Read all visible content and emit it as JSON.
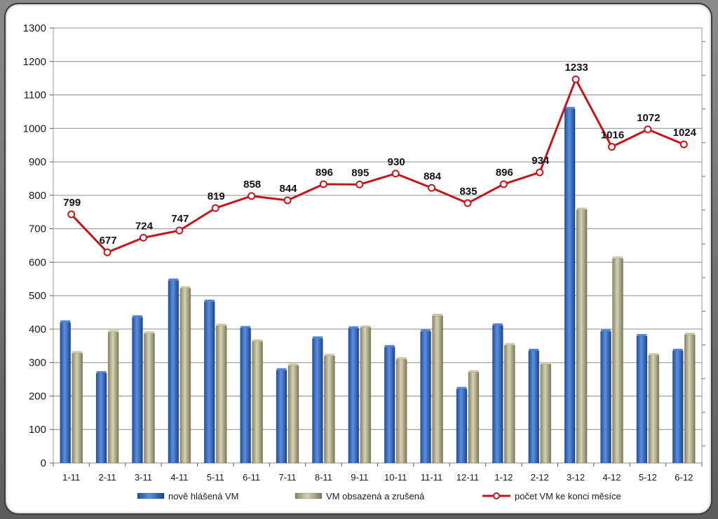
{
  "chart_data": {
    "type": "bar",
    "categories": [
      "1-11",
      "2-11",
      "3-11",
      "4-11",
      "5-11",
      "6-11",
      "7-11",
      "8-11",
      "9-11",
      "10-11",
      "11-11",
      "12-11",
      "1-12",
      "2-12",
      "3-12",
      "4-12",
      "5-12",
      "6-12"
    ],
    "series": [
      {
        "name": "nově hlášená VM",
        "type": "bar",
        "color": "#3a6fc4",
        "values": [
          420,
          268,
          435,
          545,
          482,
          403,
          277,
          372,
          402,
          346,
          393,
          221,
          411,
          335,
          1058,
          393,
          379,
          335
        ]
      },
      {
        "name": "VM obsazená a zrušená",
        "type": "bar",
        "color": "#b5ad8a",
        "values": [
          328,
          391,
          387,
          522,
          410,
          363,
          291,
          320,
          405,
          310,
          440,
          271,
          352,
          295,
          757,
          611,
          322,
          383
        ]
      },
      {
        "name": "počet VM ke konci měsíce",
        "type": "line",
        "color": "#c0171c",
        "values": [
          799,
          677,
          724,
          747,
          819,
          858,
          844,
          896,
          895,
          930,
          884,
          835,
          896,
          934,
          1233,
          1016,
          1072,
          1024
        ]
      }
    ],
    "data_labels": [
      "799",
      "677",
      "724",
      "747",
      "819",
      "858",
      "844",
      "896",
      "895",
      "930",
      "884",
      "835",
      "896",
      "934",
      "1233",
      "1016",
      "1072",
      "1024"
    ],
    "yticks": [
      "0",
      "100",
      "200",
      "300",
      "400",
      "500",
      "600",
      "700",
      "800",
      "900",
      "1000",
      "1100",
      "1200",
      "1300"
    ],
    "ylim": [
      0,
      1300
    ],
    "grid": true,
    "legend_position": "bottom"
  }
}
